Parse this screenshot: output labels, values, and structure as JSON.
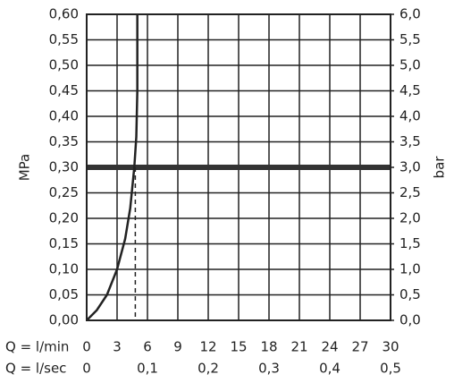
{
  "chart_data": {
    "type": "line",
    "xlabel": "Q = l/min",
    "x2label": "Q = l/sec",
    "ylabel": "MPa",
    "y2label": "bar",
    "xlim": [
      0,
      30
    ],
    "xticks": [
      0,
      3,
      6,
      9,
      12,
      15,
      18,
      21,
      24,
      27,
      30
    ],
    "x2lim": [
      0,
      0.5
    ],
    "x2ticks": [
      0,
      {
        "value": 0.1,
        "label": "0,1"
      },
      {
        "value": 0.2,
        "label": "0,2"
      },
      {
        "value": 0.3,
        "label": "0,3"
      },
      {
        "value": 0.4,
        "label": "0,4"
      },
      {
        "value": 0.5,
        "label": "0,5"
      }
    ],
    "ylim": [
      0,
      0.6
    ],
    "yticks": [
      {
        "value": 0,
        "label": "0,00"
      },
      {
        "value": 0.05,
        "label": "0,05"
      },
      {
        "value": 0.1,
        "label": "0,10"
      },
      {
        "value": 0.15,
        "label": "0,15"
      },
      {
        "value": 0.2,
        "label": "0,20"
      },
      {
        "value": 0.25,
        "label": "0,25"
      },
      {
        "value": 0.3,
        "label": "0,30"
      },
      {
        "value": 0.35,
        "label": "0,35"
      },
      {
        "value": 0.4,
        "label": "0,40"
      },
      {
        "value": 0.45,
        "label": "0,45"
      },
      {
        "value": 0.5,
        "label": "0,50"
      },
      {
        "value": 0.55,
        "label": "0,55"
      },
      {
        "value": 0.6,
        "label": "0,60"
      }
    ],
    "y2lim": [
      0,
      6
    ],
    "y2ticks": [
      {
        "value": 0,
        "label": "0,0"
      },
      {
        "value": 0.5,
        "label": "0,5"
      },
      {
        "value": 1,
        "label": "1,0"
      },
      {
        "value": 1.5,
        "label": "1,5"
      },
      {
        "value": 2,
        "label": "2,0"
      },
      {
        "value": 2.5,
        "label": "2,5"
      },
      {
        "value": 3,
        "label": "3,0"
      },
      {
        "value": 3.5,
        "label": "3,5"
      },
      {
        "value": 4,
        "label": "4,0"
      },
      {
        "value": 4.5,
        "label": "4,5"
      },
      {
        "value": 5,
        "label": "5,0"
      },
      {
        "value": 5.5,
        "label": "5,5"
      },
      {
        "value": 6,
        "label": "6,0"
      }
    ],
    "grid": true,
    "series": [
      {
        "color": "#222222",
        "x": [
          0,
          1,
          2,
          3,
          3.8,
          4.3,
          4.7,
          4.9,
          5.0,
          5.0
        ],
        "values": [
          0,
          0.02,
          0.05,
          0.1,
          0.16,
          0.22,
          0.3,
          0.36,
          0.45,
          0.6
        ]
      }
    ],
    "reference_line": 0.3,
    "drop_line": {
      "x": 4.8,
      "y": 0.3
    }
  }
}
